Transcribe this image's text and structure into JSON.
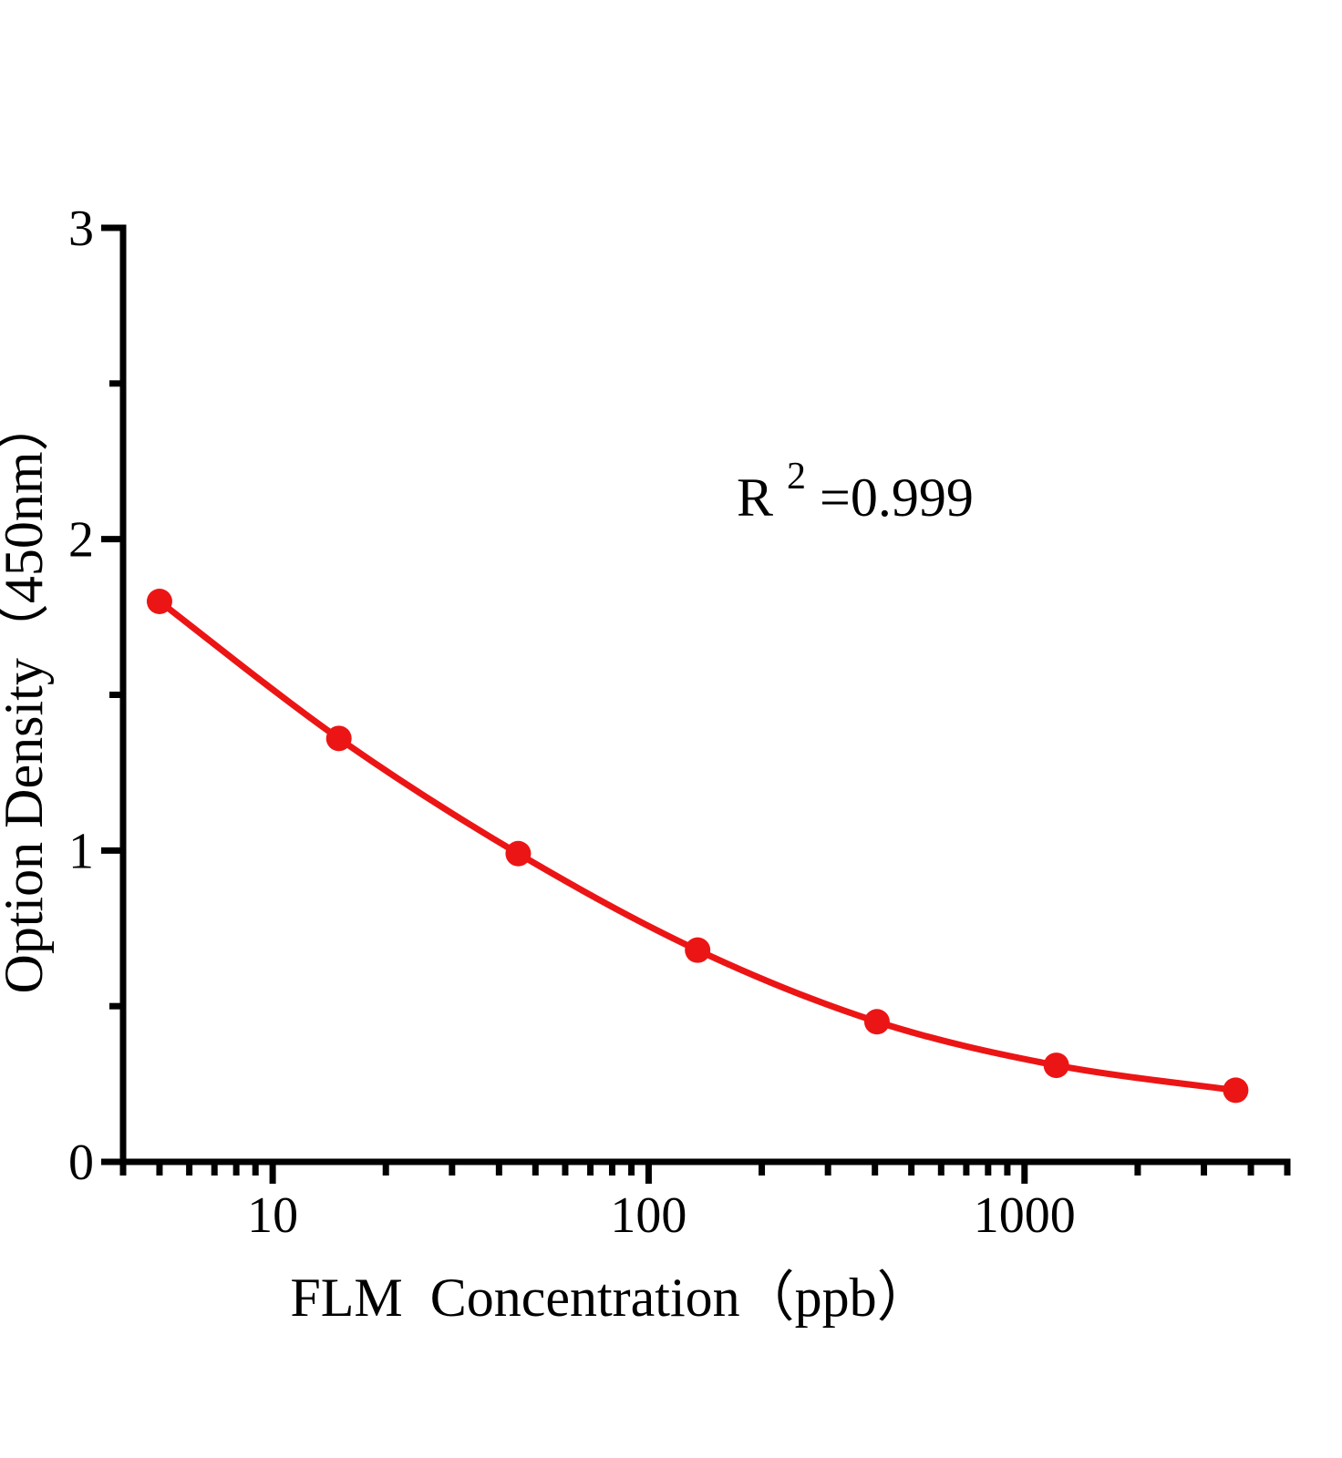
{
  "chart_data": {
    "type": "line",
    "title": "",
    "xlabel": "FLM  Concentration（ppb）",
    "ylabel": "Option Density（450nm）",
    "annotation": {
      "base": "R",
      "sup": "2",
      "rest": "=0.999"
    },
    "x": [
      5,
      15,
      45,
      135,
      405,
      1215,
      3645
    ],
    "y": [
      1.8,
      1.36,
      0.99,
      0.68,
      0.45,
      0.31,
      0.23
    ],
    "xscale": "log",
    "xlim": [
      4,
      5000
    ],
    "ylim": [
      0,
      3
    ],
    "xticks": [
      10,
      100,
      1000
    ],
    "xtick_labels": [
      "10",
      "100",
      "1000"
    ],
    "yticks": [
      0,
      1,
      2,
      3
    ],
    "ytick_labels": [
      "0",
      "1",
      "2",
      "3"
    ],
    "yticks_minor": [
      0.5,
      1.5,
      2.5
    ],
    "grid": false,
    "legend": false,
    "marker": "circle",
    "colors": {
      "curve": "#ec1515",
      "axis": "#000000",
      "background": "#ffffff"
    }
  }
}
